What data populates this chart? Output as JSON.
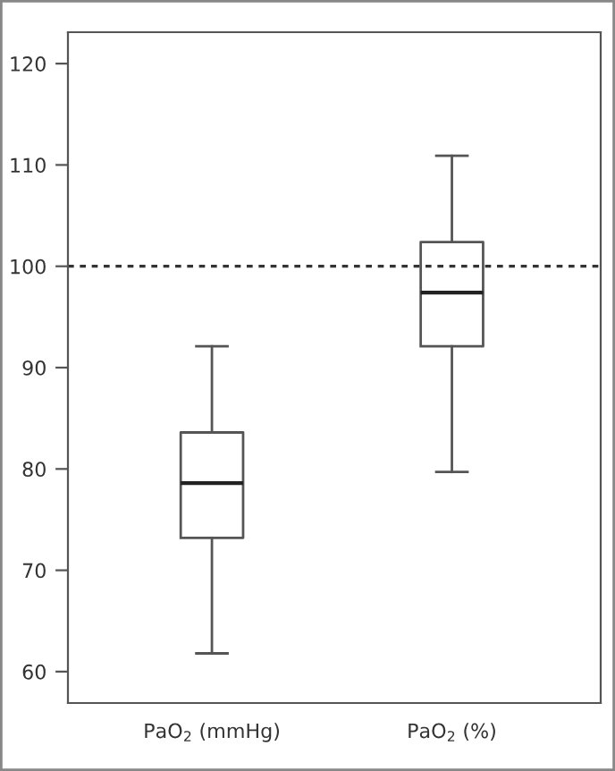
{
  "chart_data": {
    "type": "box",
    "categories": [
      "PaO$_{2}$ (mmHg)",
      "PaO$_{2}$ (%)"
    ],
    "boxes": [
      {
        "low": 61.8,
        "q1": 73.2,
        "median": 78.6,
        "q3": 83.6,
        "high": 92.1
      },
      {
        "low": 79.7,
        "q1": 92.1,
        "median": 97.4,
        "q3": 102.4,
        "high": 110.9
      }
    ],
    "ylim": [
      56.9,
      123.1
    ],
    "yticks": [
      60,
      70,
      80,
      90,
      100,
      110,
      120
    ],
    "ref_lines": [
      {
        "axis": "y",
        "value": 100,
        "line_style": "dotted",
        "color": "#333333"
      }
    ],
    "grid": false,
    "legend": false
  }
}
